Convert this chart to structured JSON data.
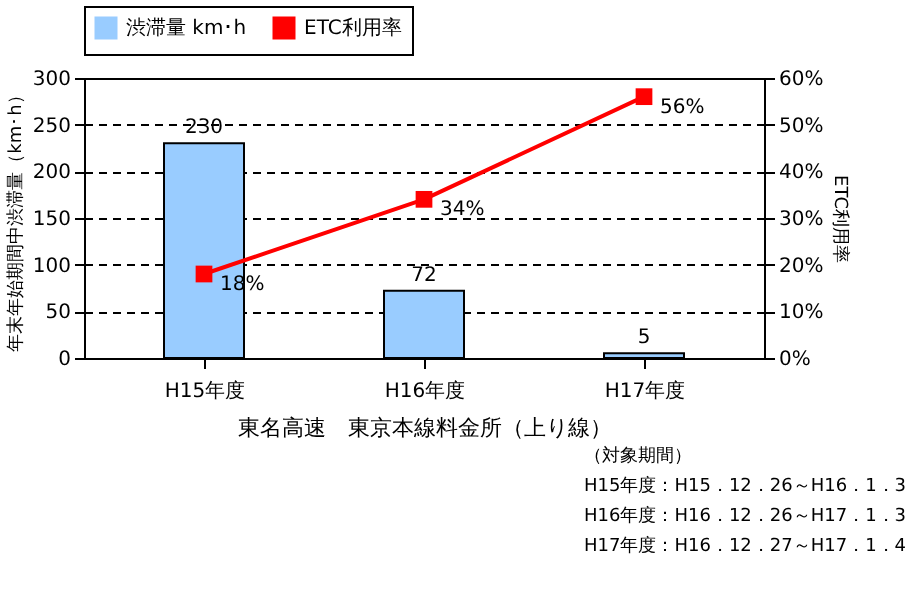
{
  "chart_data": {
    "type": "bar",
    "categories": [
      "H15年度",
      "H16年度",
      "H17年度"
    ],
    "xlabel": "東名高速　東京本線料金所（上り線）",
    "ylabel": "年末年始期間中渋滞量（km･h）",
    "y2label": "ETC利用率",
    "series": [
      {
        "name": "渋滞量 km･h",
        "color": "#99ccff",
        "values": [
          230,
          72,
          5
        ],
        "data_labels": true
      },
      {
        "name": "ETC利用率",
        "type": "line",
        "axis": "y2",
        "color": "#ff0000",
        "marker": "square",
        "values": [
          18,
          34,
          56
        ],
        "value_labels": [
          "18%",
          "34%",
          "56%"
        ]
      }
    ],
    "ylim": [
      0,
      300
    ],
    "yticks": [
      0,
      50,
      100,
      150,
      200,
      250,
      300
    ],
    "y2lim": [
      0,
      60
    ],
    "y2ticks": [
      {
        "value": 0,
        "label": "0%"
      },
      {
        "value": 10,
        "label": "10%"
      },
      {
        "value": 20,
        "label": "20%"
      },
      {
        "value": 30,
        "label": "30%"
      },
      {
        "value": 40,
        "label": "40%"
      },
      {
        "value": 50,
        "label": "50%"
      },
      {
        "value": 60,
        "label": "60%"
      }
    ],
    "grid": "y",
    "legend": "top",
    "annotations": [
      "（対象期間）",
      "H15年度：H15．12．26～H16．1．3",
      "H16年度：H16．12．26～H17．1．3",
      "H17年度：H16．12．27～H17．1．4"
    ]
  }
}
